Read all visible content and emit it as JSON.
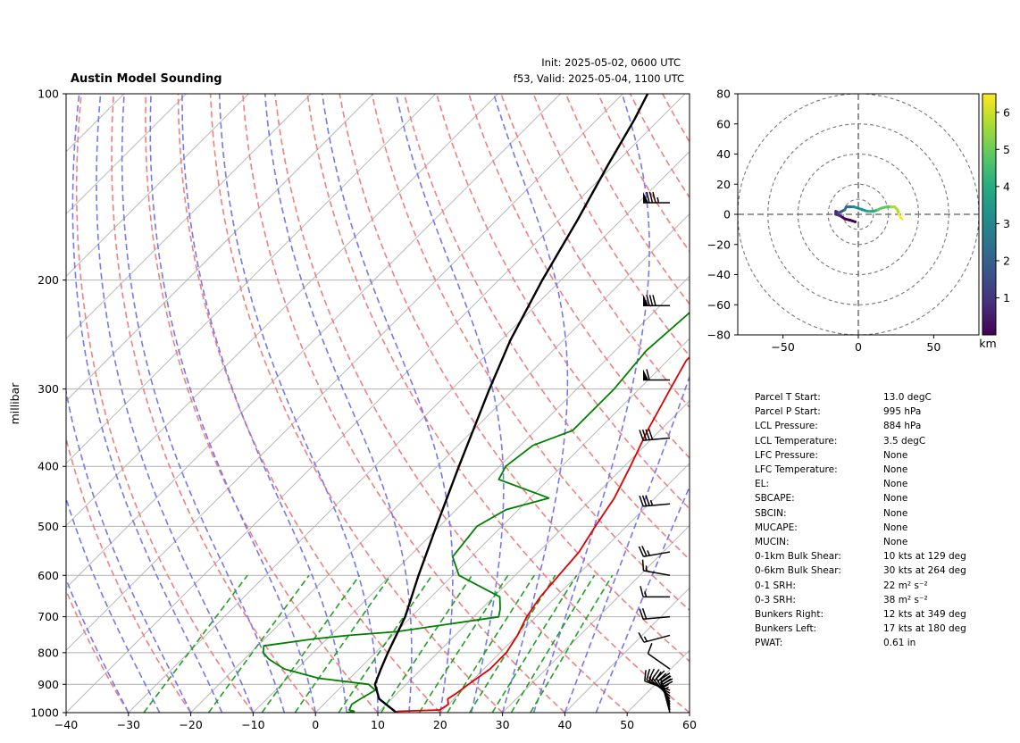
{
  "header": {
    "title": "Austin Model Sounding",
    "init": "Init: 2025-05-02, 0600 UTC",
    "valid": "f53, Valid: 2025-05-04, 1100 UTC"
  },
  "chart_data": [
    {
      "type": "line",
      "subtype": "skew-t log-p",
      "ylabel": "millibar",
      "xlim": [
        -40,
        60
      ],
      "ylim": [
        1000,
        100
      ],
      "yscale": "log",
      "xticks": [
        -40,
        -30,
        -20,
        -10,
        0,
        10,
        20,
        30,
        40,
        50,
        60
      ],
      "yticks": [
        1000,
        900,
        800,
        700,
        600,
        500,
        400,
        300,
        200,
        100
      ],
      "series": [
        {
          "key": "temperature",
          "color": "#e00000",
          "points": [
            [
              1000,
              13
            ],
            [
              995,
              13
            ],
            [
              990,
              19.5
            ],
            [
              970,
              20
            ],
            [
              950,
              19
            ],
            [
              930,
              19.5
            ],
            [
              900,
              20
            ],
            [
              850,
              21
            ],
            [
              800,
              21
            ],
            [
              750,
              20
            ],
            [
              700,
              18.5
            ],
            [
              650,
              17.5
            ],
            [
              600,
              17
            ],
            [
              550,
              16.5
            ],
            [
              500,
              15
            ],
            [
              450,
              13.5
            ],
            [
              400,
              11
            ],
            [
              350,
              8
            ],
            [
              300,
              5
            ],
            [
              270,
              3
            ],
            [
              240,
              3
            ],
            [
              220,
              4
            ],
            [
              200,
              7.5
            ],
            [
              180,
              12
            ],
            [
              160,
              17
            ],
            [
              140,
              23
            ],
            [
              125,
              28
            ],
            [
              115,
              30
            ],
            [
              100,
              35
            ]
          ]
        },
        {
          "key": "dewpoint",
          "color": "#008000",
          "points": [
            [
              1000,
              5
            ],
            [
              995,
              6
            ],
            [
              990,
              5
            ],
            [
              970,
              4.5
            ],
            [
              950,
              5
            ],
            [
              920,
              6
            ],
            [
              900,
              4
            ],
            [
              880,
              -5
            ],
            [
              850,
              -12
            ],
            [
              820,
              -16
            ],
            [
              800,
              -18
            ],
            [
              780,
              -19
            ],
            [
              760,
              -12
            ],
            [
              750,
              -7
            ],
            [
              740,
              0
            ],
            [
              700,
              14
            ],
            [
              680,
              13
            ],
            [
              650,
              11
            ],
            [
              600,
              1
            ],
            [
              560,
              -3
            ],
            [
              500,
              -4
            ],
            [
              470,
              -2
            ],
            [
              450,
              3
            ],
            [
              420,
              -8
            ],
            [
              400,
              -9
            ],
            [
              370,
              -8
            ],
            [
              350,
              -4
            ],
            [
              300,
              -4
            ],
            [
              260,
              -5
            ],
            [
              220,
              -4
            ],
            [
              180,
              -3
            ],
            [
              150,
              -1
            ],
            [
              130,
              2
            ],
            [
              115,
              4
            ],
            [
              100,
              7
            ]
          ]
        },
        {
          "key": "parcel",
          "color": "#000000",
          "points": [
            [
              1000,
              13
            ],
            [
              950,
              8
            ],
            [
              900,
              5
            ],
            [
              850,
              3.5
            ],
            [
              800,
              2
            ],
            [
              700,
              -1
            ],
            [
              600,
              -5.5
            ],
            [
              500,
              -10.5
            ],
            [
              400,
              -16.5
            ],
            [
              300,
              -24
            ],
            [
              250,
              -28.5
            ],
            [
              200,
              -33
            ],
            [
              160,
              -37
            ],
            [
              130,
              -41
            ],
            [
              110,
              -44
            ],
            [
              100,
              -46
            ]
          ]
        }
      ],
      "barbs": [
        {
          "p": 1000,
          "speed": 15,
          "dir": 345
        },
        {
          "p": 990,
          "speed": 15,
          "dir": 345
        },
        {
          "p": 980,
          "speed": 20,
          "dir": 340
        },
        {
          "p": 970,
          "speed": 20,
          "dir": 340
        },
        {
          "p": 960,
          "speed": 20,
          "dir": 330
        },
        {
          "p": 950,
          "speed": 20,
          "dir": 320
        },
        {
          "p": 940,
          "speed": 15,
          "dir": 310
        },
        {
          "p": 930,
          "speed": 15,
          "dir": 300
        },
        {
          "p": 920,
          "speed": 10,
          "dir": 290
        },
        {
          "p": 850,
          "speed": 10,
          "dir": 305
        },
        {
          "p": 750,
          "speed": 15,
          "dir": 255
        },
        {
          "p": 700,
          "speed": 20,
          "dir": 265
        },
        {
          "p": 650,
          "speed": 15,
          "dir": 270
        },
        {
          "p": 600,
          "speed": 15,
          "dir": 280
        },
        {
          "p": 550,
          "speed": 25,
          "dir": 260
        },
        {
          "p": 460,
          "speed": 35,
          "dir": 265
        },
        {
          "p": 360,
          "speed": 40,
          "dir": 265
        },
        {
          "p": 290,
          "speed": 60,
          "dir": 270
        },
        {
          "p": 220,
          "speed": 80,
          "dir": 270
        },
        {
          "p": 150,
          "speed": 85,
          "dir": 270
        }
      ]
    },
    {
      "type": "scatter",
      "subtype": "hodograph",
      "xlim": [
        -80,
        80
      ],
      "ylim": [
        -80,
        80
      ],
      "xticks": [
        -50,
        0,
        50
      ],
      "yticks": [
        -80,
        -60,
        -40,
        -20,
        0,
        20,
        40,
        60,
        80
      ],
      "rings": [
        10,
        20,
        40,
        60,
        80
      ],
      "colorbar": {
        "label": "km",
        "ticks": [
          1,
          2,
          3,
          4,
          5,
          6
        ],
        "range": [
          0,
          6.5
        ]
      },
      "points": [
        [
          -2,
          -5
        ],
        [
          -5,
          -4
        ],
        [
          -9,
          -3
        ],
        [
          -12,
          -1
        ],
        [
          -15,
          0
        ],
        [
          -15,
          2
        ],
        [
          -13,
          1
        ],
        [
          -11,
          2
        ],
        [
          -9,
          3
        ],
        [
          -8,
          5
        ],
        [
          -6,
          5
        ],
        [
          -3,
          5
        ],
        [
          0,
          4
        ],
        [
          3,
          3
        ],
        [
          6,
          2
        ],
        [
          10,
          2
        ],
        [
          13,
          3
        ],
        [
          15,
          4
        ],
        [
          19,
          5
        ],
        [
          22,
          5
        ],
        [
          24,
          5
        ],
        [
          26,
          3
        ],
        [
          27,
          0
        ],
        [
          28,
          -2
        ],
        [
          29,
          -3
        ]
      ]
    }
  ],
  "stats": [
    {
      "label": "Parcel T Start:",
      "value": "13.0 degC"
    },
    {
      "label": "Parcel P Start:",
      "value": "995 hPa"
    },
    {
      "label": "LCL Pressure:",
      "value": "884 hPa"
    },
    {
      "label": "LCL Temperature:",
      "value": "3.5 degC"
    },
    {
      "label": "LFC Pressure:",
      "value": "None"
    },
    {
      "label": "LFC Temperature:",
      "value": "None"
    },
    {
      "label": "EL:",
      "value": "None"
    },
    {
      "label": "SBCAPE:",
      "value": "None"
    },
    {
      "label": "SBCIN:",
      "value": "None"
    },
    {
      "label": "MUCAPE:",
      "value": "None"
    },
    {
      "label": "MUCIN:",
      "value": "None"
    },
    {
      "label": "0-1km Bulk Shear:",
      "value": "10 kts at 129 deg"
    },
    {
      "label": "0-6km Bulk Shear:",
      "value": "30 kts at 264 deg"
    },
    {
      "label": "0-1 SRH:",
      "value": "22 m² s⁻²"
    },
    {
      "label": "0-3 SRH:",
      "value": "38 m² s⁻²"
    },
    {
      "label": "Bunkers Right:",
      "value": "12 kts at 349 deg"
    },
    {
      "label": "Bunkers Left:",
      "value": "17 kts at 180 deg"
    },
    {
      "label": "PWAT:",
      "value": "0.61 in"
    }
  ]
}
